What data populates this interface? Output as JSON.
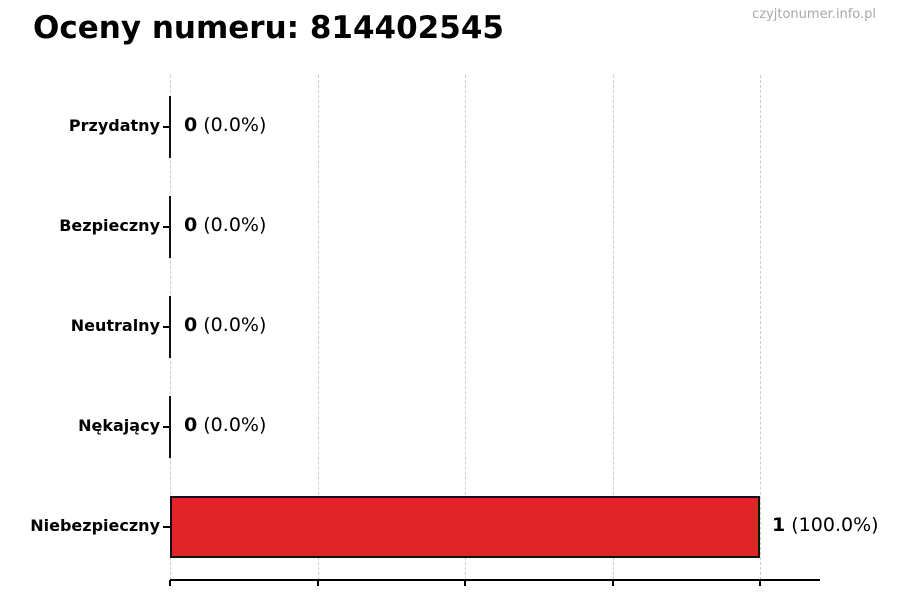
{
  "header": {
    "title": "Oceny numeru: 814402545",
    "watermark": "czyjtonumer.info.pl"
  },
  "chart_data": {
    "type": "bar",
    "orientation": "horizontal",
    "title": "Oceny numeru: 814402545",
    "categories": [
      "Przydatny",
      "Bezpieczny",
      "Neutralny",
      "Nękający",
      "Niebezpieczny"
    ],
    "values": [
      0,
      0,
      0,
      0,
      1
    ],
    "percent_labels": [
      "0.0%",
      "0.0%",
      "0.0%",
      "0.0%",
      "100.0%"
    ],
    "value_labels": [
      "0 (0.0%)",
      "0 (0.0%)",
      "0 (0.0%)",
      "0 (0.0%)",
      "1 (100.0%)"
    ],
    "xlabel": "",
    "ylabel": "",
    "xlim": [
      0,
      1.1
    ],
    "x_ticks": [
      0,
      0.25,
      0.5,
      0.75,
      1.0
    ],
    "grid": "vertical-dashed",
    "legend": "none",
    "colors": {
      "bar_fill": "#e02528",
      "bar_edge": "#111111",
      "grid_line": "#cccccc",
      "axis_line": "#000000",
      "watermark_text": "#a8a8a8",
      "text": "#000000"
    }
  }
}
